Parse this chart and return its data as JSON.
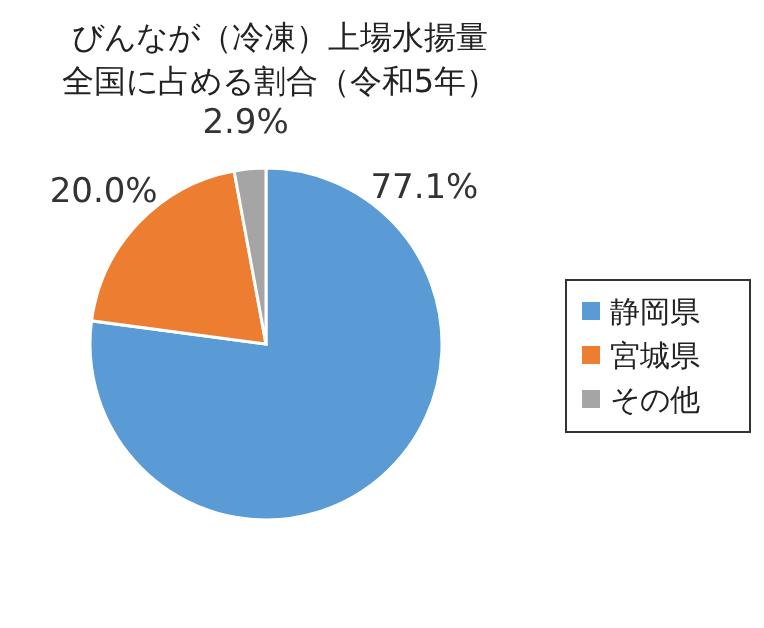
{
  "chart_data": {
    "type": "pie",
    "title": "びんなが（冷凍）上場水揚量",
    "subtitle": "全国に占める割合（令和5年）",
    "categories": [
      "静岡県",
      "宮城県",
      "その他"
    ],
    "values": [
      77.1,
      20.0,
      2.9
    ],
    "colors": [
      "#5b9bd5",
      "#ed7d31",
      "#a5a5a5"
    ],
    "value_labels": [
      "77.1%",
      "20.0%",
      "2.9%"
    ],
    "legend": "right"
  }
}
